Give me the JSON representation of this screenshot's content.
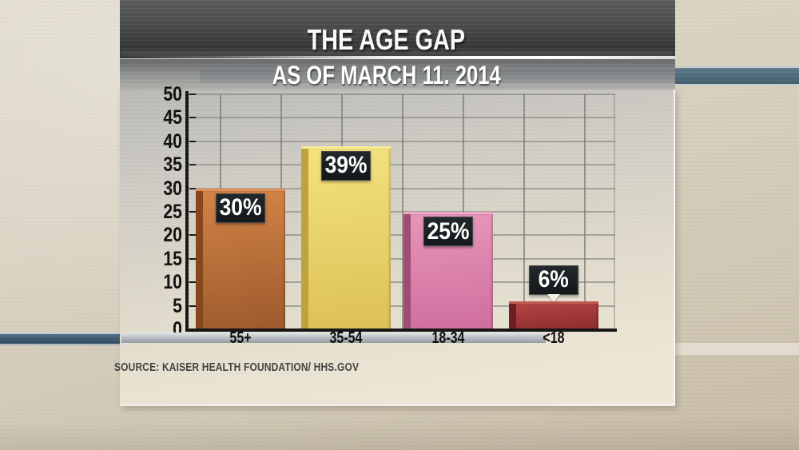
{
  "header": {
    "title": "THE AGE GAP",
    "subtitle": "AS OF MARCH 11. 2014"
  },
  "source": {
    "text": "SOURCE: KAISER HEALTH FOUNDATION/ HHS.GOV"
  },
  "colors": {
    "label_box_bg": "#171c20",
    "label_text": "#ffffff",
    "axis": "#141414",
    "backdrop_beige": "#d6cdbc",
    "stripe_left_blue": "#35566a",
    "stripe_right_blue": "#4e6a7c",
    "header_dark_gray": "#3a3c3e",
    "subband_gray": "#8e9092"
  },
  "chart_data": {
    "type": "bar",
    "title": "THE AGE GAP",
    "subtitle": "AS OF MARCH 11. 2014",
    "categories": [
      "55+",
      "35-54",
      "18-34",
      "<18"
    ],
    "values": [
      30,
      39,
      25,
      6
    ],
    "value_labels": [
      "30%",
      "39%",
      "25%",
      "6%"
    ],
    "label_placement": [
      "inside",
      "inside",
      "inside",
      "above"
    ],
    "bar_colors": [
      {
        "face_top": "#d28347",
        "face_bottom": "#9e5b2d",
        "side": "#86471f",
        "bevel": "#de9356"
      },
      {
        "face_top": "#f3e27d",
        "face_bottom": "#dcc156",
        "side": "#c0a23d",
        "bevel": "#f8ec97"
      },
      {
        "face_top": "#e796ba",
        "face_bottom": "#cf6e9e",
        "side": "#9f4d77",
        "bevel": "#efa9c8"
      },
      {
        "face_top": "#b14545",
        "face_bottom": "#8f2b2d",
        "side": "#6d1f22",
        "bevel": "#c65a54"
      }
    ],
    "xlabel": "",
    "ylabel": "",
    "ylim": [
      0,
      50
    ],
    "ytick_step": 5,
    "grid": true,
    "legend": false,
    "source": "SOURCE: KAISER HEALTH FOUNDATION/ HHS.GOV"
  }
}
